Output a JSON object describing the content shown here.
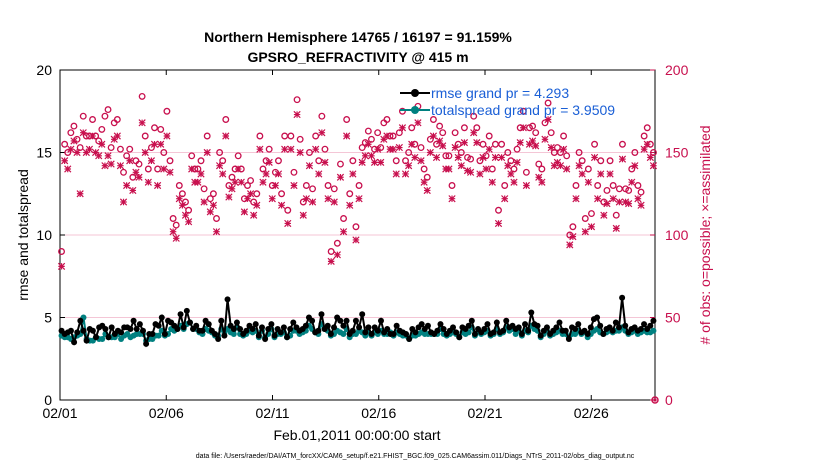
{
  "chart_data": {
    "type": "line",
    "title": [
      "Northern Hemisphere 14765 / 16197 = 91.159%",
      "GPSRO_REFRACTIVITY @ 415 m"
    ],
    "xlabel": "Feb.01,2011 00:00:00 start",
    "ylabel": "rmse and totalspread",
    "y2label": "# of obs: o=possible; ×=assimilated",
    "footnote": "data file: /Users/raeder/DAI/ATM_forcXX/CAM6_setup/f.e21.FHIST_BGC.f09_025.CAM6assim.011/Diags_NTrS_2011-02/obs_diag_output.nc",
    "xlim": [
      0,
      28
    ],
    "ylim": [
      0,
      20
    ],
    "y2lim": [
      0,
      200
    ],
    "xticks": [
      0,
      5,
      10,
      15,
      20,
      25
    ],
    "xtick_labels": [
      "02/01",
      "02/06",
      "02/11",
      "02/16",
      "02/21",
      "02/26"
    ],
    "yticks": [
      0,
      5,
      10,
      15,
      20
    ],
    "ytick_labels": [
      "0",
      "5",
      "10",
      "15",
      "20"
    ],
    "y2ticks": [
      0,
      50,
      100,
      150,
      200
    ],
    "y2tick_labels": [
      "0",
      "50",
      "100",
      "150",
      "200"
    ],
    "legend_position": "top-right",
    "colors": {
      "rmse": "#000000",
      "totalspread": "#008080",
      "obs": "#c8104e",
      "legend_text": "#1a5fd6"
    },
    "series": [
      {
        "name": "rmse grand pr = 4.293",
        "key": "rmse",
        "axis": "left",
        "values": [
          4.2,
          4.0,
          4.1,
          4.2,
          3.5,
          4.1,
          4.8,
          4.2,
          3.6,
          4.3,
          4.2,
          3.8,
          4.4,
          4.5,
          4.3,
          3.8,
          4.4,
          4.0,
          4.2,
          4.1,
          4.4,
          4.4,
          4.3,
          4.8,
          4.3,
          4.6,
          4.2,
          3.4,
          4.0,
          4.0,
          4.6,
          4.5,
          5.0,
          4.0,
          4.8,
          4.7,
          4.5,
          4.3,
          5.2,
          4.4,
          5.4,
          4.7,
          4.3,
          4.5,
          4.2,
          4.2,
          4.8,
          4.6,
          4.2,
          4.0,
          3.7,
          4.8,
          3.9,
          6.1,
          4.5,
          4.3,
          4.7,
          4.3,
          4.0,
          4.2,
          4.5,
          4.3,
          4.6,
          3.9,
          4.4,
          3.7,
          4.3,
          4.6,
          3.9,
          4.3,
          4.1,
          4.4,
          3.8,
          4.3,
          4.7,
          4.4,
          4.2,
          4.3,
          4.5,
          5.0,
          4.8,
          4.1,
          4.2,
          5.2,
          4.3,
          4.5,
          4.0,
          4.4,
          5.0,
          4.8,
          4.5,
          4.8,
          4.0,
          4.2,
          4.8,
          4.4,
          5.2,
          4.1,
          4.4,
          4.0,
          4.4,
          4.2,
          4.8,
          4.1,
          4.3,
          4.0,
          4.0,
          4.5,
          4.2,
          4.1,
          4.0,
          3.7,
          4.3,
          4.1,
          4.4,
          4.6,
          4.3,
          4.5,
          4.1,
          4.0,
          4.2,
          4.6,
          4.3,
          4.0,
          4.2,
          4.4,
          4.1,
          3.8,
          4.4,
          4.3,
          4.5,
          4.8,
          4.0,
          4.3,
          4.1,
          4.3,
          4.6,
          4.0,
          4.1,
          4.7,
          4.1,
          4.2,
          4.8,
          4.4,
          4.5,
          4.3,
          4.4,
          4.0,
          4.6,
          4.2,
          5.3,
          4.6,
          4.5,
          3.9,
          4.2,
          4.4,
          4.0,
          4.2,
          4.4,
          4.7,
          4.2,
          4.2,
          3.7,
          4.4,
          4.3,
          4.6,
          4.1,
          4.2,
          4.0,
          4.4,
          4.9,
          5.0,
          4.5,
          4.0,
          4.3,
          4.4,
          4.2,
          4.7,
          4.4,
          6.2,
          4.5,
          4.1,
          4.3,
          4.4,
          4.2,
          4.3,
          4.6,
          4.3,
          4.5,
          4.8
        ]
      },
      {
        "name": "totalspread grand pr = 3.9509",
        "key": "totalspread",
        "axis": "left",
        "values": [
          3.9,
          3.8,
          3.8,
          3.7,
          3.8,
          3.9,
          4.0,
          5.0,
          3.7,
          3.6,
          3.6,
          3.8,
          3.7,
          3.7,
          4.0,
          3.8,
          3.8,
          3.8,
          4.0,
          3.7,
          3.9,
          4.0,
          3.8,
          3.9,
          4.0,
          4.0,
          4.0,
          3.6,
          3.7,
          3.7,
          3.9,
          3.9,
          4.2,
          3.9,
          4.0,
          4.3,
          4.2,
          4.3,
          4.5,
          4.3,
          4.6,
          4.7,
          4.3,
          4.3,
          4.1,
          4.0,
          4.3,
          4.2,
          4.1,
          3.9,
          3.9,
          4.3,
          4.1,
          4.3,
          4.1,
          4.0,
          4.4,
          4.0,
          3.9,
          4.0,
          4.2,
          4.1,
          4.2,
          3.8,
          4.2,
          3.8,
          4.0,
          4.3,
          3.8,
          4.0,
          4.0,
          4.1,
          3.8,
          3.9,
          4.2,
          4.2,
          4.0,
          4.1,
          4.2,
          4.5,
          4.3,
          4.1,
          4.0,
          4.6,
          4.3,
          4.2,
          3.9,
          4.0,
          4.2,
          4.1,
          4.0,
          4.3,
          3.8,
          4.0,
          4.0,
          4.2,
          4.1,
          3.9,
          4.1,
          3.9,
          4.1,
          4.0,
          4.2,
          4.0,
          4.0,
          4.1,
          3.9,
          4.1,
          4.0,
          3.9,
          3.9,
          3.7,
          3.9,
          3.9,
          4.0,
          4.1,
          4.0,
          4.0,
          4.0,
          4.0,
          4.0,
          4.3,
          4.0,
          3.9,
          4.0,
          4.1,
          4.0,
          3.8,
          4.1,
          4.0,
          4.1,
          4.4,
          3.9,
          4.1,
          4.0,
          4.1,
          4.2,
          3.9,
          4.0,
          4.3,
          4.0,
          4.1,
          4.4,
          4.2,
          4.3,
          4.0,
          4.2,
          3.9,
          4.2,
          4.1,
          4.5,
          4.3,
          4.2,
          3.8,
          4.0,
          4.2,
          3.9,
          4.0,
          4.1,
          4.2,
          4.0,
          4.0,
          3.8,
          4.0,
          4.0,
          4.2,
          4.0,
          4.1,
          3.8,
          4.0,
          4.2,
          4.3,
          4.1,
          4.0,
          4.1,
          4.2,
          4.1,
          4.2,
          4.2,
          4.4,
          4.2,
          4.0,
          4.1,
          4.2,
          4.0,
          4.1,
          4.2,
          4.1,
          4.1,
          4.2
        ]
      },
      {
        "name": "obs possible",
        "key": "possible",
        "axis": "right",
        "marker": "o",
        "values": [
          90,
          155,
          150,
          162,
          166,
          158,
          153,
          172,
          160,
          160,
          170,
          160,
          157,
          164,
          172,
          176,
          153,
          168,
          170,
          152,
          138,
          148,
          152,
          135,
          145,
          143,
          184,
          160,
          140,
          153,
          165,
          140,
          164,
          150,
          175,
          145,
          110,
          106,
          130,
          125,
          120,
          115,
          148,
          140,
          140,
          145,
          128,
          160,
          122,
          125,
          110,
          150,
          145,
          170,
          130,
          135,
          140,
          148,
          140,
          122,
          130,
          133,
          120,
          125,
          160,
          140,
          145,
          152,
          130,
          138,
          145,
          125,
          160,
          115,
          160,
          138,
          182,
          158,
          120,
          130,
          150,
          128,
          160,
          145,
          172,
          152,
          130,
          90,
          128,
          95,
          143,
          110,
          170,
          125,
          145,
          105,
          130,
          153,
          156,
          163,
          158,
          152,
          162,
          153,
          168,
          170,
          160,
          160,
          145,
          162,
          175,
          145,
          150,
          165,
          155,
          178,
          153,
          140,
          135,
          158,
          170,
          155,
          166,
          162,
          148,
          148,
          130,
          162,
          155,
          150,
          165,
          147,
          146,
          172,
          165,
          145,
          155,
          148,
          160,
          140,
          155,
          115,
          155,
          130,
          150,
          145,
          140,
          152,
          165,
          175,
          138,
          165,
          166,
          162,
          143,
          140,
          168,
          180,
          162,
          150,
          153,
          150,
          160,
          148,
          100,
          105,
          130,
          150,
          145,
          110,
          140,
          113,
          155,
          130,
          145,
          120,
          127,
          145,
          130,
          112,
          128,
          155,
          128,
          127,
          140,
          150,
          130,
          126,
          160,
          165,
          155,
          150
        ]
      },
      {
        "name": "obs assimilated",
        "key": "assimilated",
        "axis": "right",
        "marker": "x",
        "values": [
          81,
          145,
          140,
          152,
          157,
          150,
          125,
          162,
          150,
          152,
          160,
          150,
          148,
          155,
          142,
          148,
          143,
          158,
          160,
          142,
          120,
          130,
          145,
          127,
          138,
          135,
          168,
          150,
          132,
          145,
          155,
          130,
          155,
          140,
          160,
          138,
          102,
          98,
          122,
          118,
          112,
          108,
          140,
          132,
          132,
          137,
          120,
          150,
          114,
          118,
          102,
          142,
          137,
          160,
          123,
          128,
          132,
          140,
          132,
          114,
          122,
          125,
          112,
          118,
          152,
          132,
          137,
          144,
          122,
          130,
          137,
          118,
          152,
          107,
          152,
          130,
          173,
          150,
          112,
          122,
          142,
          120,
          152,
          137,
          162,
          144,
          122,
          84,
          120,
          88,
          135,
          102,
          160,
          118,
          137,
          97,
          122,
          144,
          148,
          155,
          148,
          144,
          152,
          144,
          158,
          160,
          152,
          152,
          137,
          153,
          165,
          137,
          142,
          155,
          147,
          168,
          145,
          132,
          127,
          150,
          160,
          147,
          157,
          154,
          140,
          140,
          122,
          153,
          147,
          142,
          156,
          139,
          138,
          162,
          156,
          137,
          147,
          140,
          152,
          132,
          147,
          107,
          147,
          122,
          142,
          137,
          132,
          144,
          156,
          165,
          130,
          155,
          157,
          154,
          135,
          132,
          158,
          170,
          153,
          142,
          144,
          142,
          152,
          140,
          94,
          99,
          122,
          142,
          137,
          102,
          132,
          105,
          147,
          122,
          137,
          112,
          119,
          137,
          122,
          104,
          120,
          146,
          120,
          119,
          132,
          142,
          122,
          118,
          152,
          155,
          147,
          142
        ]
      }
    ]
  }
}
